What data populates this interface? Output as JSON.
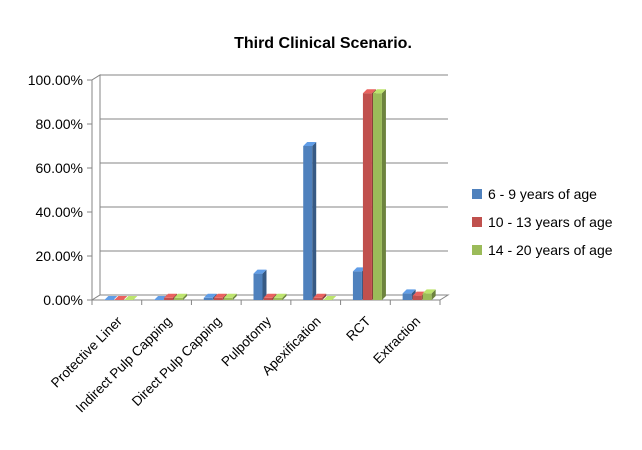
{
  "chart_data": {
    "type": "bar",
    "title": "Third Clinical Scenario.",
    "xlabel": "",
    "ylabel": "",
    "ylim": [
      0,
      100
    ],
    "y_ticks": [
      "0.00%",
      "20.00%",
      "40.00%",
      "60.00%",
      "80.00%",
      "100.00%"
    ],
    "categories": [
      "Protective Liner",
      "Indirect Pulp Capping",
      "Direct Pulp Capping",
      "Pulpotomy",
      "Apexification",
      "RCT",
      "Extraction"
    ],
    "series": [
      {
        "name": "6 - 9 years of age",
        "color": "#4f81bd",
        "values": [
          0,
          0,
          1,
          12,
          70,
          13,
          3
        ]
      },
      {
        "name": "10 - 13 years of age",
        "color": "#c0504d",
        "values": [
          0,
          1,
          1,
          1,
          1,
          94,
          2
        ]
      },
      {
        "name": "14 - 20 years of age",
        "color": "#9bbb59",
        "values": [
          0,
          1,
          1,
          1,
          0,
          94,
          3
        ]
      }
    ],
    "grid": true,
    "legend_position": "right"
  }
}
